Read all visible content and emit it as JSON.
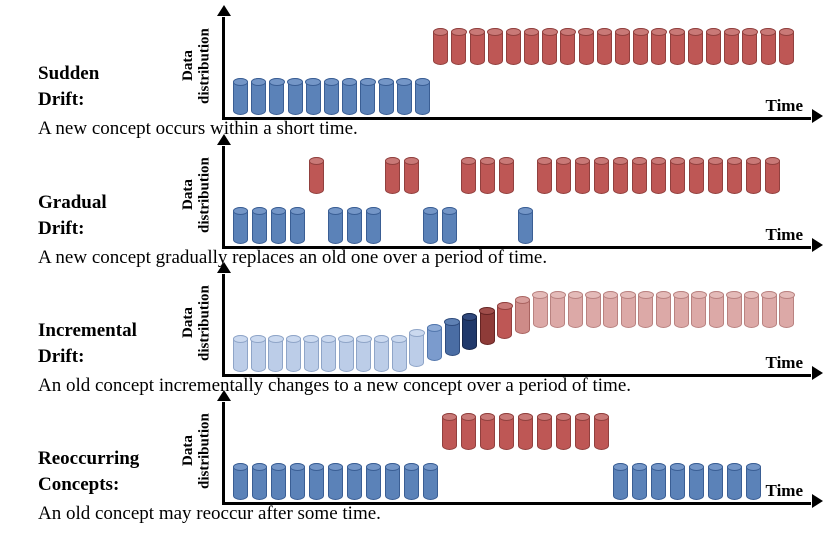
{
  "figure": {
    "y_axis_label": "Data\ndistribution",
    "x_axis_label": "Time"
  },
  "palette": {
    "blue": {
      "fill": "#5B82B8",
      "stroke": "#3A5E94",
      "top": "#7496C7"
    },
    "red": {
      "fill": "#BE5755",
      "stroke": "#91403E",
      "top": "#C97977"
    },
    "lb": {
      "fill": "#BCCDE8",
      "stroke": "#8FA5C8",
      "top": "#CBD9EF"
    },
    "mb": {
      "fill": "#7B9BCD",
      "stroke": "#5377AD",
      "top": "#8FACD7"
    },
    "sb": {
      "fill": "#4A6DA4",
      "stroke": "#2F4C7E",
      "top": "#5F81B4"
    },
    "nv": {
      "fill": "#20396B",
      "stroke": "#16264A",
      "top": "#31497D"
    },
    "dr": {
      "fill": "#8E3B38",
      "stroke": "#652423",
      "top": "#A04E4B"
    },
    "mr": {
      "fill": "#BE5755",
      "stroke": "#91403E",
      "top": "#C97977"
    },
    "lr": {
      "fill": "#CE8B88",
      "stroke": "#A96360",
      "top": "#D89E9C"
    },
    "pk": {
      "fill": "#DCA9A7",
      "stroke": "#B98280",
      "top": "#E4BBB9"
    }
  },
  "chart_data": {
    "type": "bar",
    "note": "Four mini-charts of data distribution over time; each bar is a cylinder glyph. l=0 old-concept (bottom row), higher l = raised row / new concept."
  },
  "panels": [
    {
      "label": "Sudden\nDrift:",
      "caption": "A new concept occurs within a short time.",
      "level_step": 50,
      "bars": [
        {
          "c": "blue",
          "l": 0,
          "n": 11
        },
        {
          "c": "red",
          "l": 1,
          "n": 20
        }
      ]
    },
    {
      "label": "Gradual\nDrift:",
      "caption": "A new concept gradually replaces an old one over a period of time.",
      "level_step": 50,
      "bars": [
        {
          "c": "blue",
          "l": 0,
          "n": 4
        },
        {
          "c": "red",
          "l": 1,
          "n": 1
        },
        {
          "c": "blue",
          "l": 0,
          "n": 3
        },
        {
          "c": "red",
          "l": 1,
          "n": 2
        },
        {
          "c": "blue",
          "l": 0,
          "n": 2
        },
        {
          "c": "red",
          "l": 1,
          "n": 3
        },
        {
          "c": "blue",
          "l": 0,
          "n": 1
        },
        {
          "c": "red",
          "l": 1,
          "n": 13
        }
      ]
    },
    {
      "label": "Incremental\nDrift:",
      "caption": "An old concept incrementally changes to a new concept over a period of time.",
      "level_step": 5.5,
      "bars": [
        {
          "c": "lb",
          "l": 0,
          "n": 10
        },
        {
          "c": "lb",
          "l": 1,
          "n": 1
        },
        {
          "c": "mb",
          "l": 2,
          "n": 1
        },
        {
          "c": "sb",
          "l": 3,
          "n": 1
        },
        {
          "c": "nv",
          "l": 4,
          "n": 1
        },
        {
          "c": "dr",
          "l": 5,
          "n": 1
        },
        {
          "c": "mr",
          "l": 6,
          "n": 1
        },
        {
          "c": "lr",
          "l": 7,
          "n": 1
        },
        {
          "c": "pk",
          "l": 8,
          "n": 15
        }
      ]
    },
    {
      "label": "Reoccurring\nConcepts:",
      "caption": "An old concept may reoccur after some time.",
      "level_step": 50,
      "bars": [
        {
          "c": "blue",
          "l": 0,
          "n": 11
        },
        {
          "c": "red",
          "l": 1,
          "n": 9
        },
        {
          "c": "blue",
          "l": 0,
          "n": 8
        }
      ]
    }
  ]
}
